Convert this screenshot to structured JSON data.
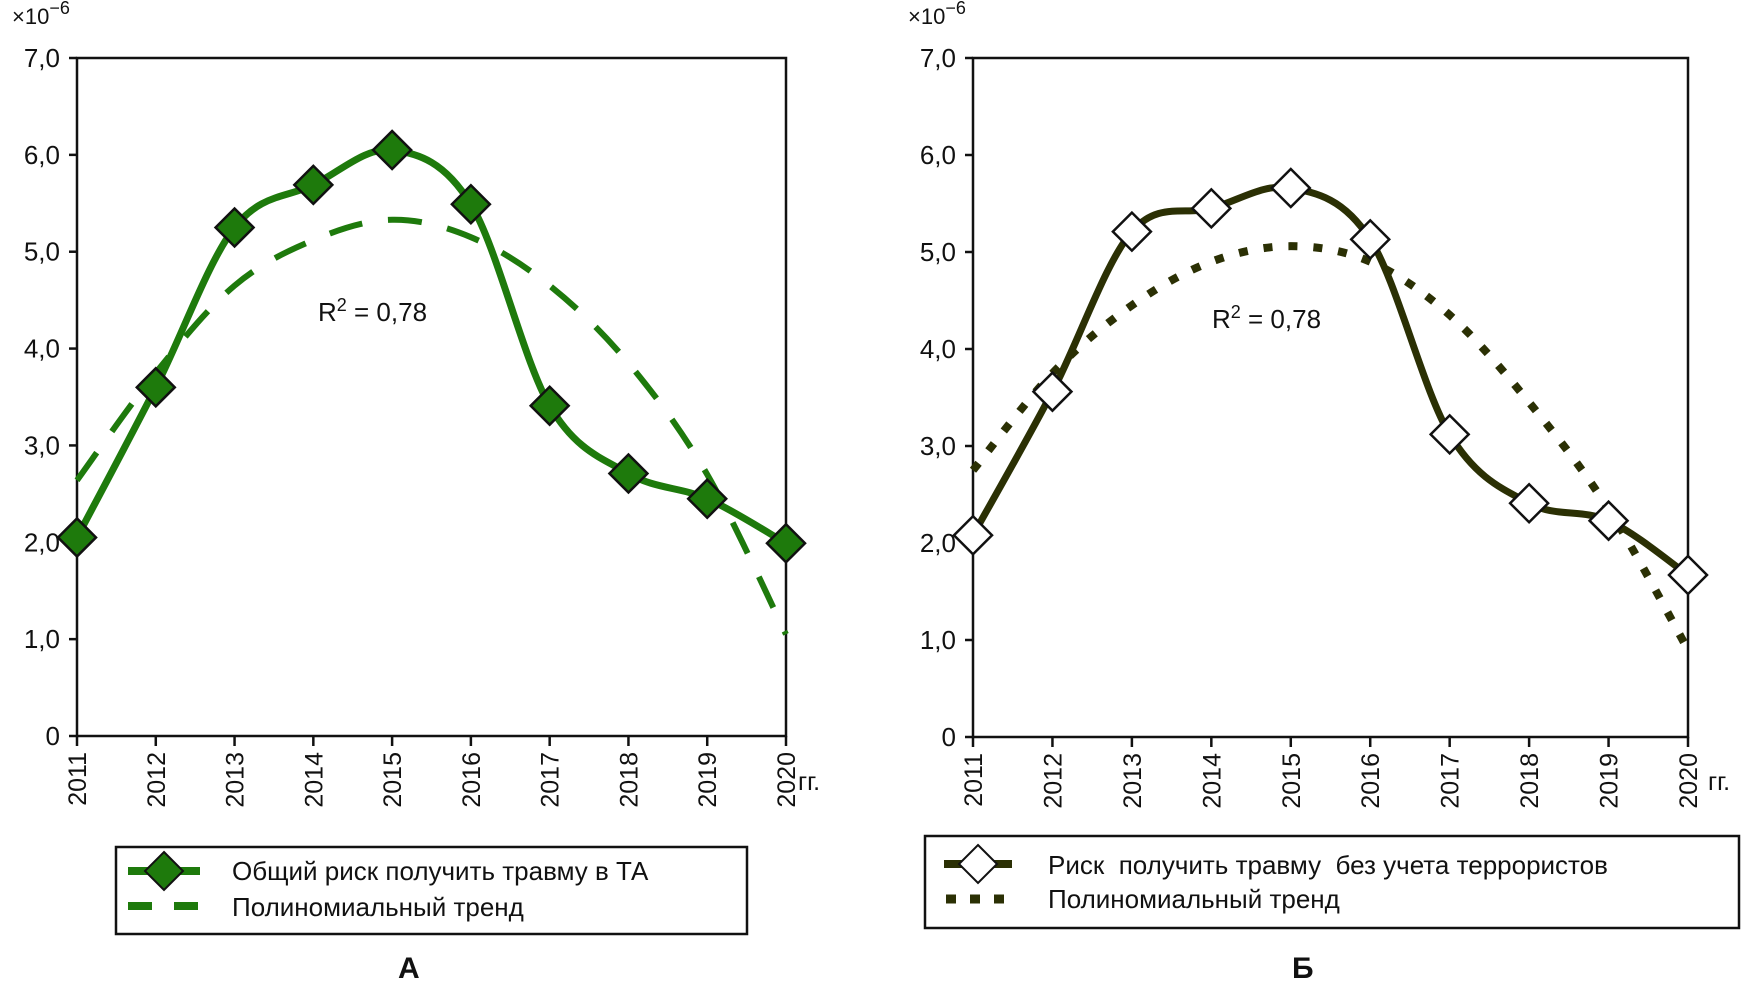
{
  "chart_data": [
    {
      "panel": "A",
      "type": "line",
      "title": "",
      "xlabel": "гг.",
      "ylabel": "",
      "y_multiplier": "×10",
      "y_multiplier_exp": "−6",
      "ylim": [
        0,
        7.0
      ],
      "y_ticks": [
        "0",
        "1,0",
        "2,0",
        "3,0",
        "4,0",
        "5,0",
        "6,0",
        "7,0"
      ],
      "y_tick_values": [
        0,
        1,
        2,
        3,
        4,
        5,
        6,
        7
      ],
      "categories": [
        "2011",
        "2012",
        "2013",
        "2014",
        "2015",
        "2016",
        "2017",
        "2018",
        "2019",
        "2020"
      ],
      "grid": false,
      "annotation": {
        "r2_label": "R",
        "r2_sup": "2",
        "r2_value": " = 0,78"
      },
      "series": [
        {
          "name": "Общий риск получить травму в ТА",
          "style": "solid-diamond-filled",
          "color": "#1e7a0c",
          "values": [
            2.05,
            3.6,
            5.25,
            5.69,
            6.05,
            5.49,
            3.41,
            2.71,
            2.45,
            1.99
          ]
        },
        {
          "name": "Полиномиальный тренд",
          "style": "dashed",
          "color": "#1e7a0c",
          "values": [
            2.64,
            3.75,
            4.65,
            5.12,
            5.33,
            5.15,
            4.65,
            3.85,
            2.7,
            1.05
          ]
        }
      ],
      "legend_position": "bottom"
    },
    {
      "panel": "Б",
      "type": "line",
      "title": "",
      "xlabel": "гг.",
      "ylabel": "",
      "y_multiplier": "×10",
      "y_multiplier_exp": "−6",
      "ylim": [
        0,
        7.0
      ],
      "y_ticks": [
        "0",
        "1,0",
        "2,0",
        "3,0",
        "4,0",
        "5,0",
        "6,0",
        "7,0"
      ],
      "y_tick_values": [
        0,
        1,
        2,
        3,
        4,
        5,
        6,
        7
      ],
      "categories": [
        "2011",
        "2012",
        "2013",
        "2014",
        "2015",
        "2016",
        "2017",
        "2018",
        "2019",
        "2020"
      ],
      "grid": false,
      "annotation": {
        "r2_label": "R",
        "r2_sup": "2",
        "r2_value": " = 0,78"
      },
      "series": [
        {
          "name": "Риск  получить травму  без учета террористов",
          "style": "solid-diamond-hollow",
          "color": "#2b3004",
          "values": [
            2.08,
            3.56,
            5.21,
            5.45,
            5.66,
            5.13,
            3.12,
            2.41,
            2.23,
            1.67
          ]
        },
        {
          "name": "Полиномиальный тренд",
          "style": "dotted",
          "color": "#2b3004",
          "values": [
            2.75,
            3.75,
            4.45,
            4.9,
            5.06,
            4.9,
            4.35,
            3.45,
            2.35,
            0.9
          ]
        }
      ],
      "legend_position": "bottom"
    }
  ]
}
